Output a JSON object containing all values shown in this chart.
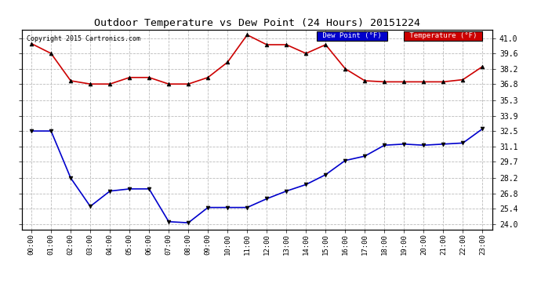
{
  "title": "Outdoor Temperature vs Dew Point (24 Hours) 20151224",
  "copyright": "Copyright 2015 Cartronics.com",
  "x_labels": [
    "00:00",
    "01:00",
    "02:00",
    "03:00",
    "04:00",
    "05:00",
    "06:00",
    "07:00",
    "08:00",
    "09:00",
    "10:00",
    "11:00",
    "12:00",
    "13:00",
    "14:00",
    "15:00",
    "16:00",
    "17:00",
    "18:00",
    "19:00",
    "20:00",
    "21:00",
    "22:00",
    "23:00"
  ],
  "temperature": [
    40.5,
    39.6,
    37.1,
    36.8,
    36.8,
    37.4,
    37.4,
    36.8,
    36.8,
    37.4,
    38.8,
    41.3,
    40.4,
    40.4,
    39.6,
    40.4,
    38.2,
    37.1,
    37.0,
    37.0,
    37.0,
    37.0,
    37.2,
    38.4
  ],
  "dew_point": [
    32.5,
    32.5,
    28.2,
    25.6,
    27.0,
    27.2,
    27.2,
    24.2,
    24.1,
    25.5,
    25.5,
    25.5,
    26.3,
    27.0,
    27.6,
    28.5,
    29.8,
    30.2,
    31.2,
    31.3,
    31.2,
    31.3,
    31.4,
    32.7
  ],
  "temp_color": "#cc0000",
  "dew_color": "#0000cc",
  "marker_color": "#000000",
  "ylim_min": 23.5,
  "ylim_max": 41.8,
  "yticks": [
    24.0,
    25.4,
    26.8,
    28.2,
    29.7,
    31.1,
    32.5,
    33.9,
    35.3,
    36.8,
    38.2,
    39.6,
    41.0
  ],
  "ytick_labels": [
    "24.0",
    "25.4",
    "26.8",
    "28.2",
    "29.7",
    "31.1",
    "32.5",
    "33.9",
    "35.3",
    "36.8",
    "38.2",
    "39.6",
    "41.0"
  ],
  "bg_color": "#ffffff",
  "grid_color": "#bbbbbb",
  "legend_dew_bg": "#0000cc",
  "legend_temp_bg": "#cc0000"
}
